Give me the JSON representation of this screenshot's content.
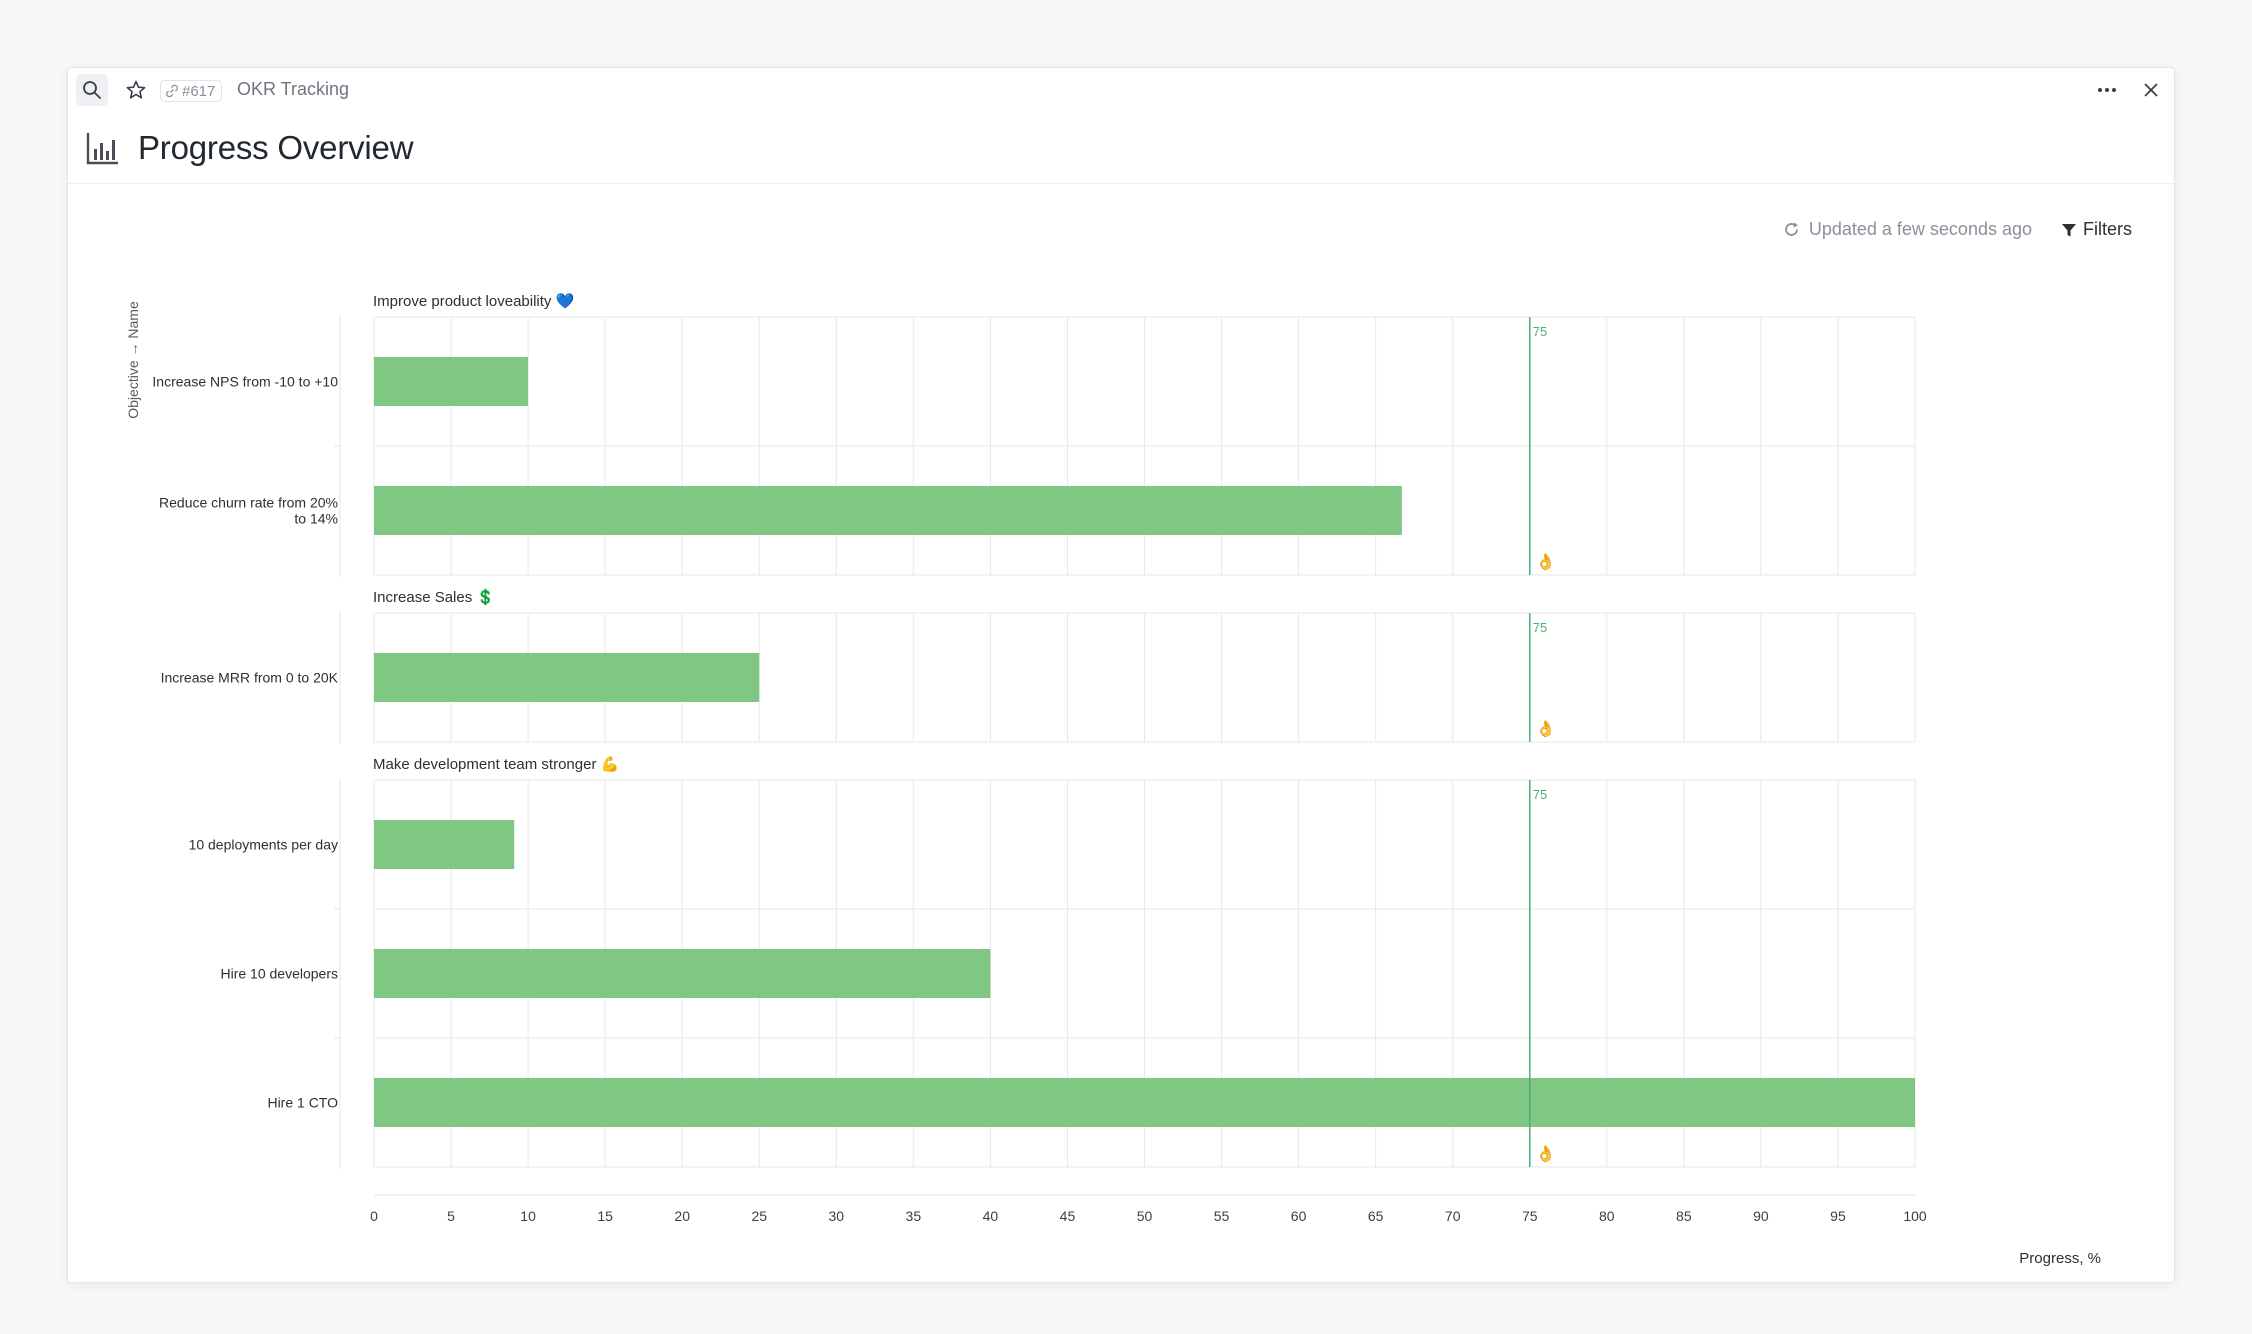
{
  "header": {
    "id_label": "#617",
    "breadcrumb": "OKR Tracking",
    "title": "Progress Overview"
  },
  "toolbar": {
    "updated_text": "Updated a few seconds ago",
    "filters_label": "Filters"
  },
  "colors": {
    "bar": "#81c784",
    "target_line": "#4caf73",
    "grid": "#e6e8ea",
    "text": "#2c2f36"
  },
  "chart_data": {
    "type": "bar",
    "orientation": "horizontal",
    "xlabel": "Progress, %",
    "ylabel": "Objective → Name",
    "xlim": [
      0,
      100
    ],
    "xticks": [
      0,
      5,
      10,
      15,
      20,
      25,
      30,
      35,
      40,
      45,
      50,
      55,
      60,
      65,
      70,
      75,
      80,
      85,
      90,
      95,
      100
    ],
    "grid": true,
    "target": {
      "value": 75,
      "label": "75",
      "marker": "👌"
    },
    "groups": [
      {
        "name": "Improve product loveability",
        "emoji": "💙",
        "bars": [
          {
            "label": "Increase NPS from -10 to +10",
            "value": 10
          },
          {
            "label": "Reduce churn rate from 20% to 14%",
            "lines": [
              "Reduce churn rate from 20%",
              "to 14%"
            ],
            "value": 66.7
          }
        ]
      },
      {
        "name": "Increase Sales",
        "emoji": "💲",
        "bars": [
          {
            "label": "Increase MRR from 0 to 20K",
            "value": 25
          }
        ]
      },
      {
        "name": "Make development team stronger",
        "emoji": "💪",
        "bars": [
          {
            "label": "10 deployments per day",
            "value": 9.1
          },
          {
            "label": "Hire 10 developers",
            "value": 40
          },
          {
            "label": "Hire 1 CTO",
            "value": 100
          }
        ]
      }
    ]
  }
}
